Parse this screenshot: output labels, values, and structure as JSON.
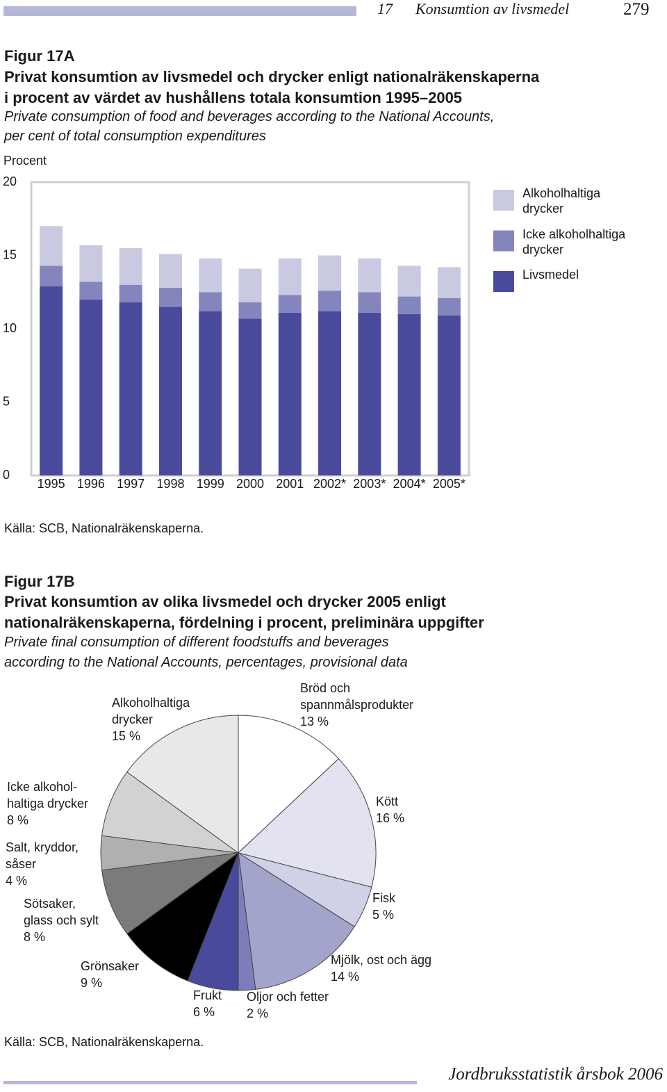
{
  "header": {
    "chapter": "17",
    "section": "Konsumtion av livsmedel",
    "page": "279"
  },
  "chart_data": [
    {
      "type": "bar",
      "stacked": true,
      "figure_label": "Figur 17A",
      "title": "Privat konsumtion av livsmedel och drycker enligt nationalräkenskaperna\ni procent av värdet av hushållens totala konsumtion 1995–2005",
      "subtitle": "Private consumption of food and beverages according to the National Accounts,\nper cent of total consumption expenditures",
      "ylabel": "Procent",
      "categories": [
        "1995",
        "1996",
        "1997",
        "1998",
        "1999",
        "2000",
        "2001",
        "2002*",
        "2003*",
        "2004*",
        "2005*"
      ],
      "series": [
        {
          "name": "Livsmedel",
          "color": "#4a4a9c",
          "values": [
            12.9,
            12.0,
            11.8,
            11.5,
            11.2,
            10.7,
            11.1,
            11.2,
            11.1,
            11.0,
            10.9
          ]
        },
        {
          "name": "Icke alkoholhaltiga\ndrycker",
          "color": "#8585bd",
          "values": [
            1.4,
            1.2,
            1.2,
            1.3,
            1.3,
            1.1,
            1.2,
            1.4,
            1.4,
            1.2,
            1.2
          ]
        },
        {
          "name": "Alkoholhaltiga\ndrycker",
          "color": "#c9c9e2",
          "values": [
            2.7,
            2.5,
            2.5,
            2.3,
            2.3,
            2.3,
            2.5,
            2.4,
            2.3,
            2.1,
            2.1
          ]
        }
      ],
      "ylim": [
        0,
        20
      ],
      "yticks": [
        0,
        5,
        10,
        15,
        20
      ],
      "grid": false,
      "source": "Källa: SCB, Nationalräkenskaperna."
    },
    {
      "type": "pie",
      "figure_label": "Figur 17B",
      "title": "Privat konsumtion av olika livsmedel och drycker 2005 enligt\nnationalräkenskaperna, fördelning i procent, preliminära uppgifter",
      "subtitle": "Private final consumption of different foodstuffs and beverages\naccording to the National Accounts, percentages, provisional data",
      "categories": [
        "Bröd och\nspannmålsprodukter",
        "Kött",
        "Fisk",
        "Mjölk, ost och ägg",
        "Oljor och fetter",
        "Frukt",
        "Grönsaker",
        "Sötsaker,\nglass och sylt",
        "Salt, kryddor,\nsåser",
        "Icke alkohol-\nhaltiga drycker",
        "Alkoholhaltiga\ndrycker"
      ],
      "values": [
        13,
        16,
        5,
        14,
        2,
        6,
        9,
        8,
        4,
        8,
        15
      ],
      "value_labels": [
        "13 %",
        "16 %",
        "5 %",
        "14 %",
        "2 %",
        "6 %",
        "9 %",
        "8 %",
        "4 %",
        "8 %",
        "15 %"
      ],
      "colors": [
        "#ffffff",
        "#e2e2f0",
        "#d0d0e6",
        "#a3a4cb",
        "#7c7db9",
        "#4a4a9c",
        "#000000",
        "#7b7b7b",
        "#b0b0b0",
        "#d2d2d2",
        "#e8e8e8"
      ],
      "source": "Källa: SCB, Nationalräkenskaperna."
    }
  ],
  "footer": "Jordbruksstatistik årsbok 2006"
}
